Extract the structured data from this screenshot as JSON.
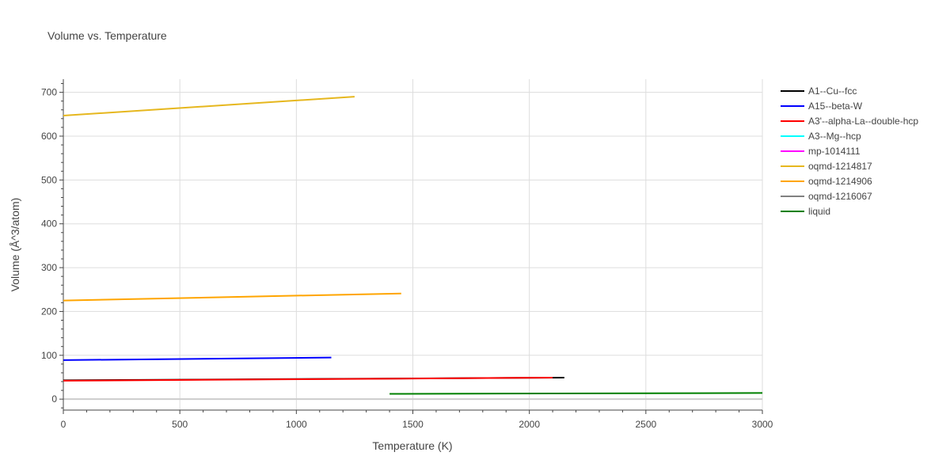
{
  "chart_data": {
    "type": "line",
    "title": "Volume vs. Temperature",
    "xlabel": "Temperature (K)",
    "ylabel": "Volume (Å^3/atom)",
    "xlim": [
      0,
      3000
    ],
    "ylim": [
      -25,
      730
    ],
    "xticks": [
      0,
      500,
      1000,
      1500,
      2000,
      2500,
      3000
    ],
    "yticks": [
      0,
      100,
      200,
      300,
      400,
      500,
      600,
      700
    ],
    "grid": true,
    "legend_position": "top-right",
    "series": [
      {
        "name": "A1--Cu--fcc",
        "color": "#000000",
        "x": [
          0,
          2150
        ],
        "y": [
          43,
          49
        ]
      },
      {
        "name": "A15--beta-W",
        "color": "#0000ff",
        "x": [
          0,
          1150
        ],
        "y": [
          89,
          95
        ]
      },
      {
        "name": "A3'--alpha-La--double-hcp",
        "color": "#ff0000",
        "x": [
          0,
          2100
        ],
        "y": [
          42,
          49
        ]
      },
      {
        "name": "A3--Mg--hcp",
        "color": "#00ffff",
        "x": [],
        "y": []
      },
      {
        "name": "mp-1014111",
        "color": "#ff00ff",
        "x": [],
        "y": []
      },
      {
        "name": "oqmd-1214817",
        "color": "#e6b71e",
        "x": [
          0,
          1250
        ],
        "y": [
          647,
          690
        ]
      },
      {
        "name": "oqmd-1214906",
        "color": "#ffa500",
        "x": [
          0,
          1450
        ],
        "y": [
          225,
          241
        ]
      },
      {
        "name": "oqmd-1216067",
        "color": "#808080",
        "x": [],
        "y": []
      },
      {
        "name": "liquid",
        "color": "#008000",
        "x": [
          1400,
          3000
        ],
        "y": [
          12,
          14
        ]
      }
    ]
  }
}
